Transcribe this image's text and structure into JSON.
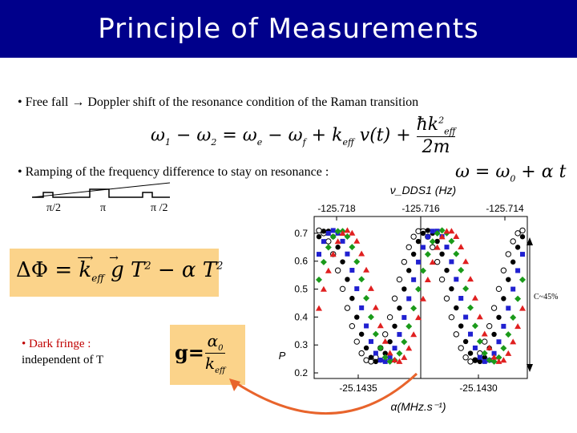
{
  "slide": {
    "title": "Principle of Measurements",
    "bullet1": "• Free fall → Doppler shift of the resonance condition of the Raman transition",
    "bullet2": "• Ramping of the frequency difference to stay on resonance :",
    "dark_fringe_line1": "• Dark fringe :",
    "dark_fringe_line2": "independent of T",
    "contrast_label": "C~45%"
  },
  "equations": {
    "doppler": "ω₁ − ω₂ = ωₑ − ω_f + k_eff·v(t) + ħk²_eff / 2m",
    "ramp": "ω = ω₀ + α t",
    "phase": "ΔΦ = k_eff·g T² − α T²",
    "g": "g = α₀ / k_eff"
  },
  "pulses": {
    "labels": [
      "π/2",
      "π",
      "π /2"
    ]
  },
  "colors": {
    "title_bar": "#00008b",
    "box": "#fbd38a",
    "arrow": "#e8642c",
    "red": "#e02020",
    "green": "#1a9a1a",
    "blue": "#2020d0",
    "black": "#000000"
  },
  "chart_data": {
    "type": "scatter",
    "title": "",
    "top_axis_label": "ν_DDS1 (Hz)",
    "top_ticks": [
      "-125.718",
      "-125.716",
      "-125.714"
    ],
    "xlabel": "α(MHz.s⁻¹)",
    "x_ticks": [
      "-25.1435",
      "-25.1430"
    ],
    "ylabel": "P",
    "y_ticks": [
      "0.2",
      "0.3",
      "0.4",
      "0.5",
      "0.6",
      "0.7"
    ],
    "ylim": [
      0.18,
      0.76
    ],
    "grid": false,
    "series": [
      {
        "marker": "circle-open",
        "color": "#000000",
        "x_shift": 0.0
      },
      {
        "marker": "circle",
        "color": "#000000",
        "x_shift": 0.035
      },
      {
        "marker": "square",
        "color": "#2020d0",
        "x_shift": 0.07
      },
      {
        "marker": "diamond",
        "color": "#1a9a1a",
        "x_shift": 0.105
      },
      {
        "marker": "triangle",
        "color": "#e02020",
        "x_shift": 0.14
      }
    ],
    "fringe": {
      "mean": 0.475,
      "amplitude": 0.235,
      "periods": 2.0,
      "dark_fringe_alpha_fraction": 0.5
    }
  }
}
